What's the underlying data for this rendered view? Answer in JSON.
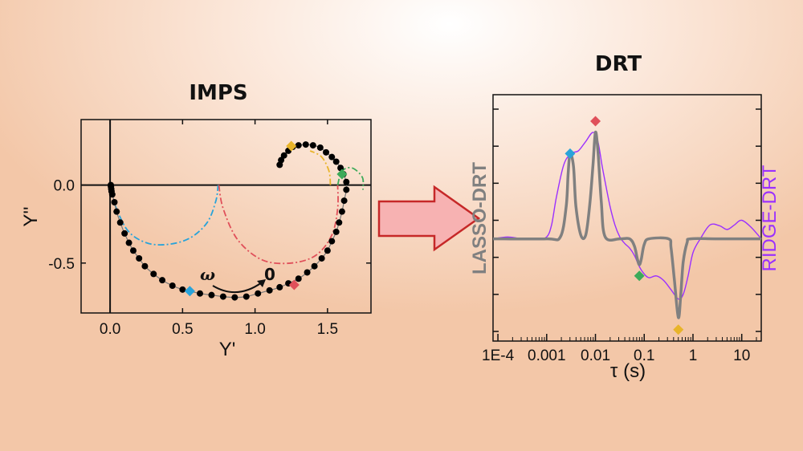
{
  "colors": {
    "blue": "#29a3d9",
    "red": "#e0505a",
    "green": "#3daa5a",
    "yellow": "#e8b42a",
    "gray": "#808080",
    "purple": "#9b30ff",
    "arrow_fill": "#f7b2b2",
    "arrow_stroke": "#c62828"
  },
  "arrow_label": {
    "omega": "ω",
    "zero": "0"
  },
  "chart_data": [
    {
      "type": "scatter",
      "title": "IMPS",
      "xlabel": "Y'",
      "ylabel": "Y''",
      "xlim": [
        -0.2,
        1.8
      ],
      "ylim": [
        -0.82,
        0.42
      ],
      "xticks": [
        0.0,
        0.5,
        1.0,
        1.5
      ],
      "xtick_labels": [
        "0.0",
        "0.5",
        "1.0",
        "1.5"
      ],
      "yticks": [
        0.0,
        -0.5
      ],
      "ytick_labels": [
        "0.0",
        "-0.5"
      ],
      "series": [
        {
          "marker": "dot",
          "points": [
            [
              0.005,
              0.0
            ],
            [
              0.006,
              -0.01
            ],
            [
              0.008,
              -0.025
            ],
            [
              0.01,
              -0.04
            ],
            [
              0.015,
              -0.06
            ],
            [
              0.03,
              -0.11
            ],
            [
              0.045,
              -0.17
            ],
            [
              0.07,
              -0.24
            ],
            [
              0.1,
              -0.31
            ],
            [
              0.13,
              -0.37
            ],
            [
              0.16,
              -0.42
            ],
            [
              0.2,
              -0.47
            ],
            [
              0.24,
              -0.52
            ],
            [
              0.3,
              -0.57
            ],
            [
              0.36,
              -0.61
            ],
            [
              0.43,
              -0.645
            ],
            [
              0.5,
              -0.67
            ],
            [
              0.55,
              -0.68
            ],
            [
              0.62,
              -0.695
            ],
            [
              0.7,
              -0.705
            ],
            [
              0.78,
              -0.715
            ],
            [
              0.86,
              -0.72
            ],
            [
              0.94,
              -0.715
            ],
            [
              1.02,
              -0.695
            ],
            [
              1.1,
              -0.675
            ],
            [
              1.17,
              -0.655
            ],
            [
              1.23,
              -0.63
            ],
            [
              1.3,
              -0.6
            ],
            [
              1.36,
              -0.56
            ],
            [
              1.41,
              -0.52
            ],
            [
              1.46,
              -0.47
            ],
            [
              1.5,
              -0.42
            ],
            [
              1.53,
              -0.36
            ],
            [
              1.56,
              -0.3
            ],
            [
              1.58,
              -0.24
            ],
            [
              1.6,
              -0.17
            ],
            [
              1.615,
              -0.1
            ],
            [
              1.63,
              -0.03
            ],
            [
              1.63,
              0.02
            ],
            [
              1.61,
              0.07
            ],
            [
              1.59,
              0.11
            ],
            [
              1.56,
              0.15
            ],
            [
              1.53,
              0.18
            ],
            [
              1.49,
              0.21
            ],
            [
              1.45,
              0.24
            ],
            [
              1.4,
              0.255
            ],
            [
              1.35,
              0.26
            ],
            [
              1.3,
              0.255
            ],
            [
              1.26,
              0.245
            ],
            [
              1.23,
              0.22
            ],
            [
              1.2,
              0.19
            ],
            [
              1.18,
              0.16
            ],
            [
              1.17,
              0.13
            ]
          ]
        }
      ],
      "markers": [
        {
          "color": "blue",
          "x": 0.55,
          "y": -0.68
        },
        {
          "color": "red",
          "x": 1.27,
          "y": -0.64
        },
        {
          "color": "green",
          "x": 1.6,
          "y": 0.07
        },
        {
          "color": "yellow",
          "x": 1.25,
          "y": 0.25
        }
      ],
      "fitted_arcs": [
        {
          "color": "blue",
          "points": [
            [
              0.03,
              -0.12
            ],
            [
              0.12,
              -0.29
            ],
            [
              0.25,
              -0.37
            ],
            [
              0.4,
              -0.38
            ],
            [
              0.55,
              -0.34
            ],
            [
              0.67,
              -0.24
            ],
            [
              0.73,
              -0.1
            ],
            [
              0.745,
              0.0
            ]
          ]
        },
        {
          "color": "red",
          "points": [
            [
              0.75,
              0.0
            ],
            [
              0.78,
              -0.15
            ],
            [
              0.88,
              -0.35
            ],
            [
              1.05,
              -0.48
            ],
            [
              1.25,
              -0.5
            ],
            [
              1.42,
              -0.45
            ],
            [
              1.53,
              -0.32
            ],
            [
              1.57,
              -0.15
            ],
            [
              1.57,
              0.0
            ]
          ]
        },
        {
          "color": "green",
          "points": [
            [
              1.57,
              0.0
            ],
            [
              1.6,
              0.09
            ],
            [
              1.67,
              0.11
            ],
            [
              1.74,
              0.05
            ],
            [
              1.745,
              -0.03
            ]
          ]
        },
        {
          "color": "yellow",
          "points": [
            [
              1.52,
              0.0
            ],
            [
              1.51,
              0.09
            ],
            [
              1.46,
              0.18
            ],
            [
              1.38,
              0.22
            ]
          ]
        }
      ]
    },
    {
      "type": "line",
      "title": "DRT",
      "xlabel": "τ (s)",
      "ylabel_left": "LASSO-DRT",
      "ylabel_right": "RIDGE-DRT",
      "xscale": "log",
      "xlim": [
        -4.1,
        1.4
      ],
      "xticks": [
        -4,
        -3,
        -2,
        -1,
        0,
        1
      ],
      "xtick_labels": [
        "1E-4",
        "0.001",
        "0.01",
        "0.1",
        "1",
        "10"
      ],
      "ylim": [
        -1.0,
        1.4
      ],
      "series": [
        {
          "name": "LASSO-DRT",
          "color": "gray",
          "x": [
            -4.1,
            -3.0,
            -2.72,
            -2.6,
            -2.56,
            -2.52,
            -2.45,
            -2.4,
            -2.3,
            -2.2,
            -2.12,
            -2.05,
            -2.0,
            -1.95,
            -1.88,
            -1.8,
            -1.5,
            -1.3,
            -1.2,
            -1.14,
            -1.1,
            -1.06,
            -1.0,
            -0.9,
            -0.5,
            -0.45,
            -0.38,
            -0.3,
            -0.25,
            -0.2,
            -0.12,
            -0.05,
            0.5,
            1.4
          ],
          "y": [
            0.0,
            0.0,
            0.02,
            0.35,
            0.7,
            0.92,
            0.78,
            0.35,
            0.04,
            0.04,
            0.35,
            0.8,
            1.15,
            0.95,
            0.4,
            0.02,
            0.0,
            0.0,
            -0.08,
            -0.22,
            -0.28,
            -0.22,
            -0.06,
            0.0,
            0.0,
            -0.1,
            -0.45,
            -0.85,
            -0.6,
            -0.25,
            -0.04,
            0.0,
            0.0,
            0.0
          ]
        },
        {
          "name": "RIDGE-DRT",
          "color": "purple",
          "x": [
            -4.1,
            -3.8,
            -3.5,
            -3.2,
            -3.0,
            -2.9,
            -2.8,
            -2.65,
            -2.5,
            -2.35,
            -2.2,
            -2.05,
            -1.95,
            -1.85,
            -1.7,
            -1.6,
            -1.5,
            -1.4,
            -1.3,
            -1.2,
            -1.1,
            -1.0,
            -0.9,
            -0.75,
            -0.6,
            -0.45,
            -0.3,
            -0.2,
            -0.1,
            0.0,
            0.15,
            0.35,
            0.55,
            0.7,
            0.85,
            1.0,
            1.2,
            1.4
          ],
          "y": [
            0.0,
            0.02,
            0.0,
            0.0,
            0.02,
            0.15,
            0.45,
            0.8,
            0.92,
            0.95,
            1.05,
            1.15,
            1.05,
            0.75,
            0.35,
            0.15,
            0.02,
            -0.05,
            -0.1,
            -0.18,
            -0.3,
            -0.38,
            -0.42,
            -0.4,
            -0.45,
            -0.55,
            -0.65,
            -0.6,
            -0.4,
            -0.15,
            0.0,
            0.15,
            0.14,
            0.1,
            0.15,
            0.2,
            0.12,
            0.0
          ]
        }
      ],
      "markers": [
        {
          "color": "blue",
          "x": -2.52,
          "y": 0.92
        },
        {
          "color": "red",
          "x": -2.0,
          "y": 1.27
        },
        {
          "color": "green",
          "x": -1.1,
          "y": -0.4
        },
        {
          "color": "yellow",
          "x": -0.3,
          "y": -0.98
        }
      ]
    }
  ]
}
